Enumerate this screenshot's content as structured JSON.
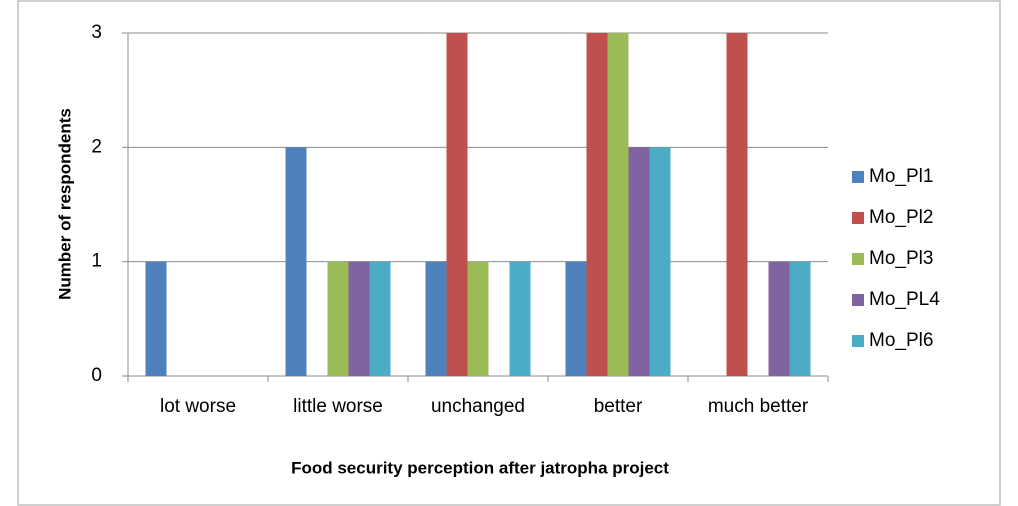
{
  "chart_data": {
    "type": "bar",
    "x_label": "Food security perception after jatropha project",
    "y_label": "Number of respondents",
    "categories": [
      "lot worse",
      "little worse",
      "unchanged",
      "better",
      "much better"
    ],
    "series": [
      {
        "name": "Mo_Pl1",
        "color": "#4f81bd",
        "values": [
          1,
          2,
          1,
          1,
          0
        ]
      },
      {
        "name": "Mo_Pl2",
        "color": "#c0504d",
        "values": [
          0,
          0,
          3,
          3,
          3
        ]
      },
      {
        "name": "Mo_Pl3",
        "color": "#9bbb59",
        "values": [
          0,
          1,
          1,
          3,
          0
        ]
      },
      {
        "name": "Mo_PL4",
        "color": "#8064a2",
        "values": [
          0,
          1,
          0,
          2,
          1
        ]
      },
      {
        "name": "Mo_Pl6",
        "color": "#4bacc6",
        "values": [
          0,
          1,
          1,
          2,
          1
        ]
      }
    ],
    "ylim": [
      0,
      3
    ],
    "yticks": [
      0,
      1,
      2,
      3
    ],
    "grid": true,
    "legend": "right"
  }
}
